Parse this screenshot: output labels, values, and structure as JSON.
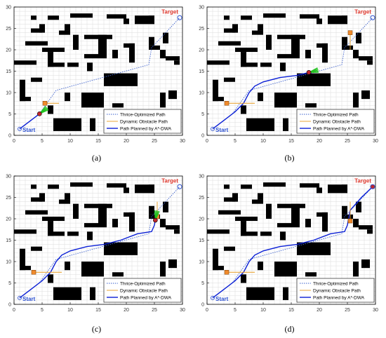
{
  "figure": {
    "panels": [
      {
        "caption": "(a)",
        "state": "robot near start, moving toward first waypoint",
        "progress": 0.12
      },
      {
        "caption": "(b)",
        "state": "robot mid-path near upper corridor",
        "progress": 0.55
      },
      {
        "caption": "(c)",
        "state": "robot at upper bend near dynamic obstacle",
        "progress": 0.78
      },
      {
        "caption": "(d)",
        "state": "robot reached target",
        "progress": 1.0
      }
    ],
    "start_label": "Start",
    "target_label": "Target",
    "legend": [
      {
        "label": "Thrice-Optimized Path",
        "color": "#3a5fcd",
        "style": "dotted"
      },
      {
        "label": "Dynamic Obstacle Path",
        "color": "#e69a1e",
        "style": "solid"
      },
      {
        "label": "Path Planned by A*-DWA",
        "color": "#0a1fd6",
        "style": "solid"
      }
    ],
    "colors": {
      "obstacle": "#000000",
      "grid": "#dcdcdc",
      "target_label": "#e03a2f",
      "start_label": "#2a4fd0",
      "dynamic_obstacle": "#f08a2c",
      "robot": "#c1272d",
      "velocity_arrow": "#21c11f"
    },
    "x_ticks": [
      "0",
      "5",
      "10",
      "15",
      "20",
      "25",
      "30"
    ],
    "y_ticks": [
      "0",
      "5",
      "10",
      "15",
      "20",
      "25",
      "30"
    ]
  },
  "chart_data": {
    "type": "scatter",
    "xlim": [
      0,
      30
    ],
    "ylim": [
      0,
      30
    ],
    "grid": true,
    "legend_position": "bottom-right",
    "start": [
      1,
      1.5
    ],
    "target": [
      29.5,
      27.5
    ],
    "optimized_path": [
      [
        1,
        1.5
      ],
      [
        4.5,
        5
      ],
      [
        7.5,
        10.5
      ],
      [
        24,
        16.5
      ],
      [
        24.5,
        20.5
      ],
      [
        29.5,
        27.5
      ]
    ],
    "planned_path": [
      [
        1,
        1.5
      ],
      [
        3,
        3.5
      ],
      [
        5,
        5.5
      ],
      [
        6.5,
        7.5
      ],
      [
        7.5,
        10
      ],
      [
        8.5,
        11.5
      ],
      [
        10,
        12.5
      ],
      [
        13,
        13.5
      ],
      [
        16,
        14
      ],
      [
        19,
        15
      ],
      [
        22,
        16.5
      ],
      [
        24.5,
        17
      ],
      [
        25,
        18.5
      ],
      [
        25.5,
        22
      ],
      [
        27.5,
        25
      ],
      [
        29.5,
        27.5
      ]
    ],
    "obstacles": [
      [
        3,
        27,
        4,
        28
      ],
      [
        6,
        27,
        8,
        28
      ],
      [
        10,
        27.5,
        14,
        28.5
      ],
      [
        16.5,
        27.3,
        20,
        28.3
      ],
      [
        19.5,
        26,
        20.5,
        27.3
      ],
      [
        21.5,
        26,
        25,
        28
      ],
      [
        24,
        27,
        25,
        28
      ],
      [
        3,
        24,
        5,
        25
      ],
      [
        4.5,
        24,
        5.5,
        26
      ],
      [
        8,
        23.5,
        10,
        24.5
      ],
      [
        9,
        24.5,
        10,
        26
      ],
      [
        10.5,
        20,
        11.5,
        23.5
      ],
      [
        12.5,
        22.5,
        17.5,
        23.5
      ],
      [
        15,
        18,
        16.5,
        23.5
      ],
      [
        2,
        21,
        6,
        22
      ],
      [
        0,
        16.5,
        4,
        17.5
      ],
      [
        5,
        19.5,
        9,
        20.5
      ],
      [
        6,
        16,
        7,
        19.5
      ],
      [
        6,
        16,
        9,
        17
      ],
      [
        9.5,
        16,
        11.5,
        17
      ],
      [
        12.5,
        18,
        15,
        19
      ],
      [
        13,
        15,
        14,
        17
      ],
      [
        17.5,
        18,
        18.5,
        20
      ],
      [
        20.5,
        17,
        21.5,
        21.5
      ],
      [
        19.5,
        20.5,
        21.5,
        21.5
      ],
      [
        24,
        21,
        25,
        23
      ],
      [
        24,
        20,
        26,
        21
      ],
      [
        26.5,
        21.5,
        27.5,
        24
      ],
      [
        26,
        18,
        27,
        20
      ],
      [
        27,
        17.5,
        29.5,
        18.5
      ],
      [
        28.5,
        16.5,
        29.5,
        17.5
      ],
      [
        16,
        11.5,
        22,
        14.5
      ],
      [
        9,
        8,
        10,
        10
      ],
      [
        1,
        8,
        2,
        13
      ],
      [
        1,
        8,
        3,
        9
      ],
      [
        3,
        12.5,
        5,
        13.5
      ],
      [
        6,
        5,
        7,
        7
      ],
      [
        12,
        6.5,
        16,
        10
      ],
      [
        17.5,
        6.5,
        19.5,
        7.5
      ],
      [
        20,
        3.5,
        25,
        5.5
      ],
      [
        26,
        6.5,
        27,
        10
      ],
      [
        27.5,
        8.5,
        29,
        10.5
      ],
      [
        7,
        1,
        12,
        4
      ],
      [
        13.5,
        1,
        14.5,
        4
      ],
      [
        16,
        3,
        16.8,
        3.8
      ],
      [
        26.5,
        0.5,
        29,
        2.5
      ]
    ],
    "dynamic_obstacles": [
      {
        "panel": "(a)",
        "position": [
          5.5,
          7.5
        ],
        "track_x": [
          5.5,
          8
        ]
      },
      {
        "panel": "(b)",
        "position": [
          3.5,
          7.5
        ],
        "track_x": [
          3.5,
          8.5
        ],
        "second": [
          25.5,
          24
        ],
        "second_track_y": [
          20,
          24
        ]
      },
      {
        "panel": "(c)",
        "position": [
          3.5,
          7.5
        ],
        "track_x": [
          3.5,
          8.5
        ],
        "second": [
          25.5,
          20.5
        ],
        "second_track_y": [
          20.5,
          24
        ]
      },
      {
        "panel": "(d)",
        "position": [
          3.5,
          7.5
        ],
        "track_x": [
          3.5,
          8.5
        ],
        "second": [
          25.5,
          19.5
        ],
        "second_track_y": [
          19.5,
          24
        ]
      }
    ]
  }
}
